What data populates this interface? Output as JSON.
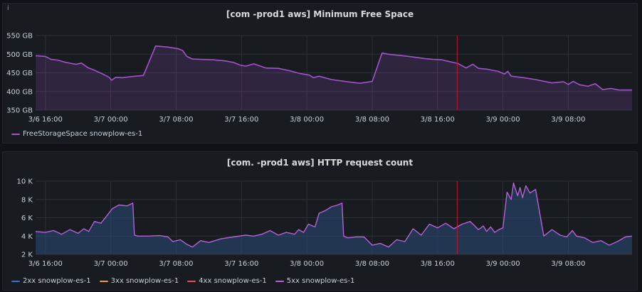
{
  "chart_data": [
    {
      "type": "area",
      "title": "[com           -prod1 aws] Minimum Free Space",
      "y_unit": "GB",
      "ylim": [
        350,
        550
      ],
      "y_ticks": [
        "550 GB",
        "500 GB",
        "450 GB",
        "400 GB",
        "350 GB"
      ],
      "y_tick_values": [
        550,
        500,
        450,
        400,
        350
      ],
      "x_ticks": [
        "3/6 16:00",
        "3/7 00:00",
        "3/7 08:00",
        "3/7 16:00",
        "3/8 00:00",
        "3/8 08:00",
        "3/8 16:00",
        "3/9 00:00",
        "3/9 08:00"
      ],
      "x_tick_hours": [
        0,
        8,
        16,
        24,
        32,
        40,
        48,
        56,
        64
      ],
      "xlim_hours": [
        -1.2,
        71.8
      ],
      "marker_hour": 50.4,
      "grid": true,
      "legend_placement": "bottom-left",
      "series": [
        {
          "name": "FreeStorageSpace snowplow-es-1",
          "color": "#a352cc",
          "x": [
            -1.2,
            0,
            0.7,
            1.5,
            2.5,
            3.2,
            3.8,
            4.4,
            5.2,
            6.0,
            7.0,
            7.8,
            8.1,
            8.6,
            9.4,
            10.5,
            12.0,
            13.5,
            15.0,
            16.2,
            16.8,
            17.3,
            18.0,
            19.0,
            20.5,
            22.0,
            23.0,
            23.8,
            24.5,
            25.5,
            27.0,
            28.5,
            30.0,
            31.2,
            32.3,
            32.8,
            33.5,
            35.0,
            37.0,
            38.5,
            40.0,
            41.2,
            42.0,
            43.2,
            44.5,
            46.5,
            47.5,
            48.5,
            49.5,
            50.5,
            51.5,
            52.3,
            53.0,
            54.0,
            55.4,
            56.2,
            56.6,
            57.0,
            58.5,
            60.0,
            62.0,
            63.4,
            64.0,
            64.6,
            65.4,
            66.4,
            67.3,
            68.2,
            69.2,
            70.2,
            71.0,
            71.8
          ],
          "y": [
            496,
            494,
            486,
            484,
            478,
            475,
            473,
            476,
            464,
            457,
            447,
            438,
            430,
            438,
            437,
            440,
            443,
            522,
            519,
            515,
            510,
            494,
            487,
            486,
            485,
            482,
            478,
            471,
            468,
            474,
            463,
            462,
            455,
            448,
            444,
            437,
            441,
            432,
            426,
            422,
            427,
            503,
            500,
            497,
            494,
            488,
            486,
            485,
            480,
            475,
            463,
            473,
            462,
            460,
            454,
            447,
            454,
            441,
            437,
            432,
            423,
            426,
            419,
            427,
            418,
            414,
            421,
            405,
            408,
            404,
            404,
            404
          ]
        }
      ]
    },
    {
      "type": "area",
      "title": "[com.           -prod1 aws] HTTP request count",
      "ylim": [
        2000,
        10000
      ],
      "y_ticks": [
        "10 K",
        "8 K",
        "6 K",
        "4 K",
        "2 K"
      ],
      "y_tick_values": [
        10000,
        8000,
        6000,
        4000,
        2000
      ],
      "x_ticks": [
        "3/6 16:00",
        "3/7 00:00",
        "3/7 08:00",
        "3/7 16:00",
        "3/8 00:00",
        "3/8 08:00",
        "3/8 16:00",
        "3/9 00:00",
        "3/9 08:00"
      ],
      "x_tick_hours": [
        0,
        8,
        16,
        24,
        32,
        40,
        48,
        56,
        64
      ],
      "xlim_hours": [
        -1.2,
        71.8
      ],
      "marker_hour": 50.4,
      "grid": true,
      "legend_placement": "bottom-left",
      "series": [
        {
          "name": "2xx snowplow-es-1",
          "color": "#3274d9",
          "x": [],
          "y": []
        },
        {
          "name": "3xx snowplow-es-1",
          "color": "#ff9830",
          "x": [],
          "y": []
        },
        {
          "name": "4xx snowplow-es-1",
          "color": "#f2495c",
          "x": [],
          "y": []
        },
        {
          "name": "5xx snowplow-es-1",
          "color": "#b462d6",
          "x": [
            -1.2,
            0,
            1,
            2,
            3,
            4,
            4.7,
            5.3,
            6.0,
            6.8,
            7.5,
            8.2,
            9.0,
            10.0,
            10.7,
            10.9,
            11.3,
            12.5,
            14.0,
            15.0,
            15.6,
            16.5,
            17.3,
            18.0,
            19.0,
            20.0,
            21.5,
            23.0,
            24.5,
            25.5,
            26.5,
            27.5,
            28.5,
            29.5,
            30.5,
            31.0,
            31.6,
            32.2,
            33.0,
            33.5,
            34.3,
            35.0,
            35.8,
            36.3,
            36.5,
            37.0,
            38.0,
            39.0,
            40.0,
            41.0,
            42.0,
            43.0,
            44.0,
            45.0,
            46.0,
            47.0,
            48.0,
            49.0,
            50.0,
            51.0,
            52.0,
            53.0,
            53.6,
            54.0,
            54.5,
            55.0,
            55.5,
            56.0,
            56.5,
            57.0,
            57.3,
            57.8,
            58.1,
            58.4,
            58.8,
            59.3,
            60.0,
            61.0,
            62.0,
            63.0,
            63.8,
            64.5,
            65.0,
            66.0,
            67.0,
            68.0,
            69.0,
            70.0,
            71.0,
            71.8
          ],
          "y": [
            4500,
            4400,
            4600,
            4200,
            4700,
            4300,
            4800,
            4500,
            5600,
            5400,
            6200,
            7000,
            7400,
            7300,
            7600,
            4100,
            4000,
            4000,
            4050,
            3900,
            3400,
            3600,
            3100,
            2800,
            3500,
            3300,
            3700,
            3900,
            4100,
            4000,
            4200,
            4600,
            4100,
            4400,
            4200,
            4700,
            4400,
            5300,
            5000,
            6500,
            6800,
            7200,
            7400,
            7600,
            4000,
            3800,
            3900,
            3900,
            3000,
            3200,
            2800,
            3600,
            3400,
            4800,
            4100,
            5300,
            4900,
            5400,
            4800,
            5300,
            5600,
            4700,
            5100,
            4500,
            5000,
            4400,
            4700,
            4900,
            8800,
            8000,
            9800,
            8400,
            9300,
            8200,
            9500,
            8700,
            9100,
            4000,
            4700,
            4100,
            3900,
            4600,
            4000,
            3800,
            3300,
            3500,
            3000,
            3400,
            3900,
            4000
          ]
        }
      ]
    }
  ]
}
